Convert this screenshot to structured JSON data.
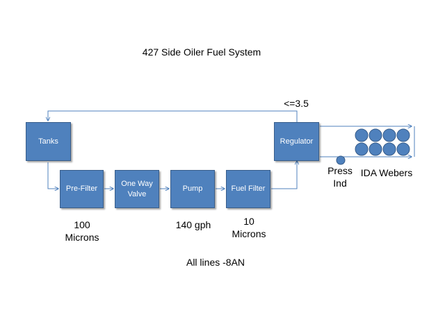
{
  "title": "427 Side Oiler Fuel System",
  "nodes": {
    "tanks": "Tanks",
    "pre_filter": "Pre-Filter",
    "one_way_valve": "One Way\nValve",
    "pump": "Pump",
    "fuel_filter": "Fuel Filter",
    "regulator": "Regulator"
  },
  "labels": {
    "pre_filter_rating": "100\nMicrons",
    "pump_rating": "140 gph",
    "fuel_filter_rating": "10\nMicrons",
    "regulator_pressure": "<=3.5",
    "press_ind": "Press\nInd",
    "ida_webers": "IDA Webers",
    "all_lines": "All lines -8AN"
  },
  "colors": {
    "box_fill": "#4f81bd",
    "box_border": "#385d8a",
    "line": "#4f81bd",
    "carb_fill": "#4f81bd"
  },
  "icons": {
    "carburetor_barrel": "circle",
    "pressure_indicator": "circle"
  }
}
